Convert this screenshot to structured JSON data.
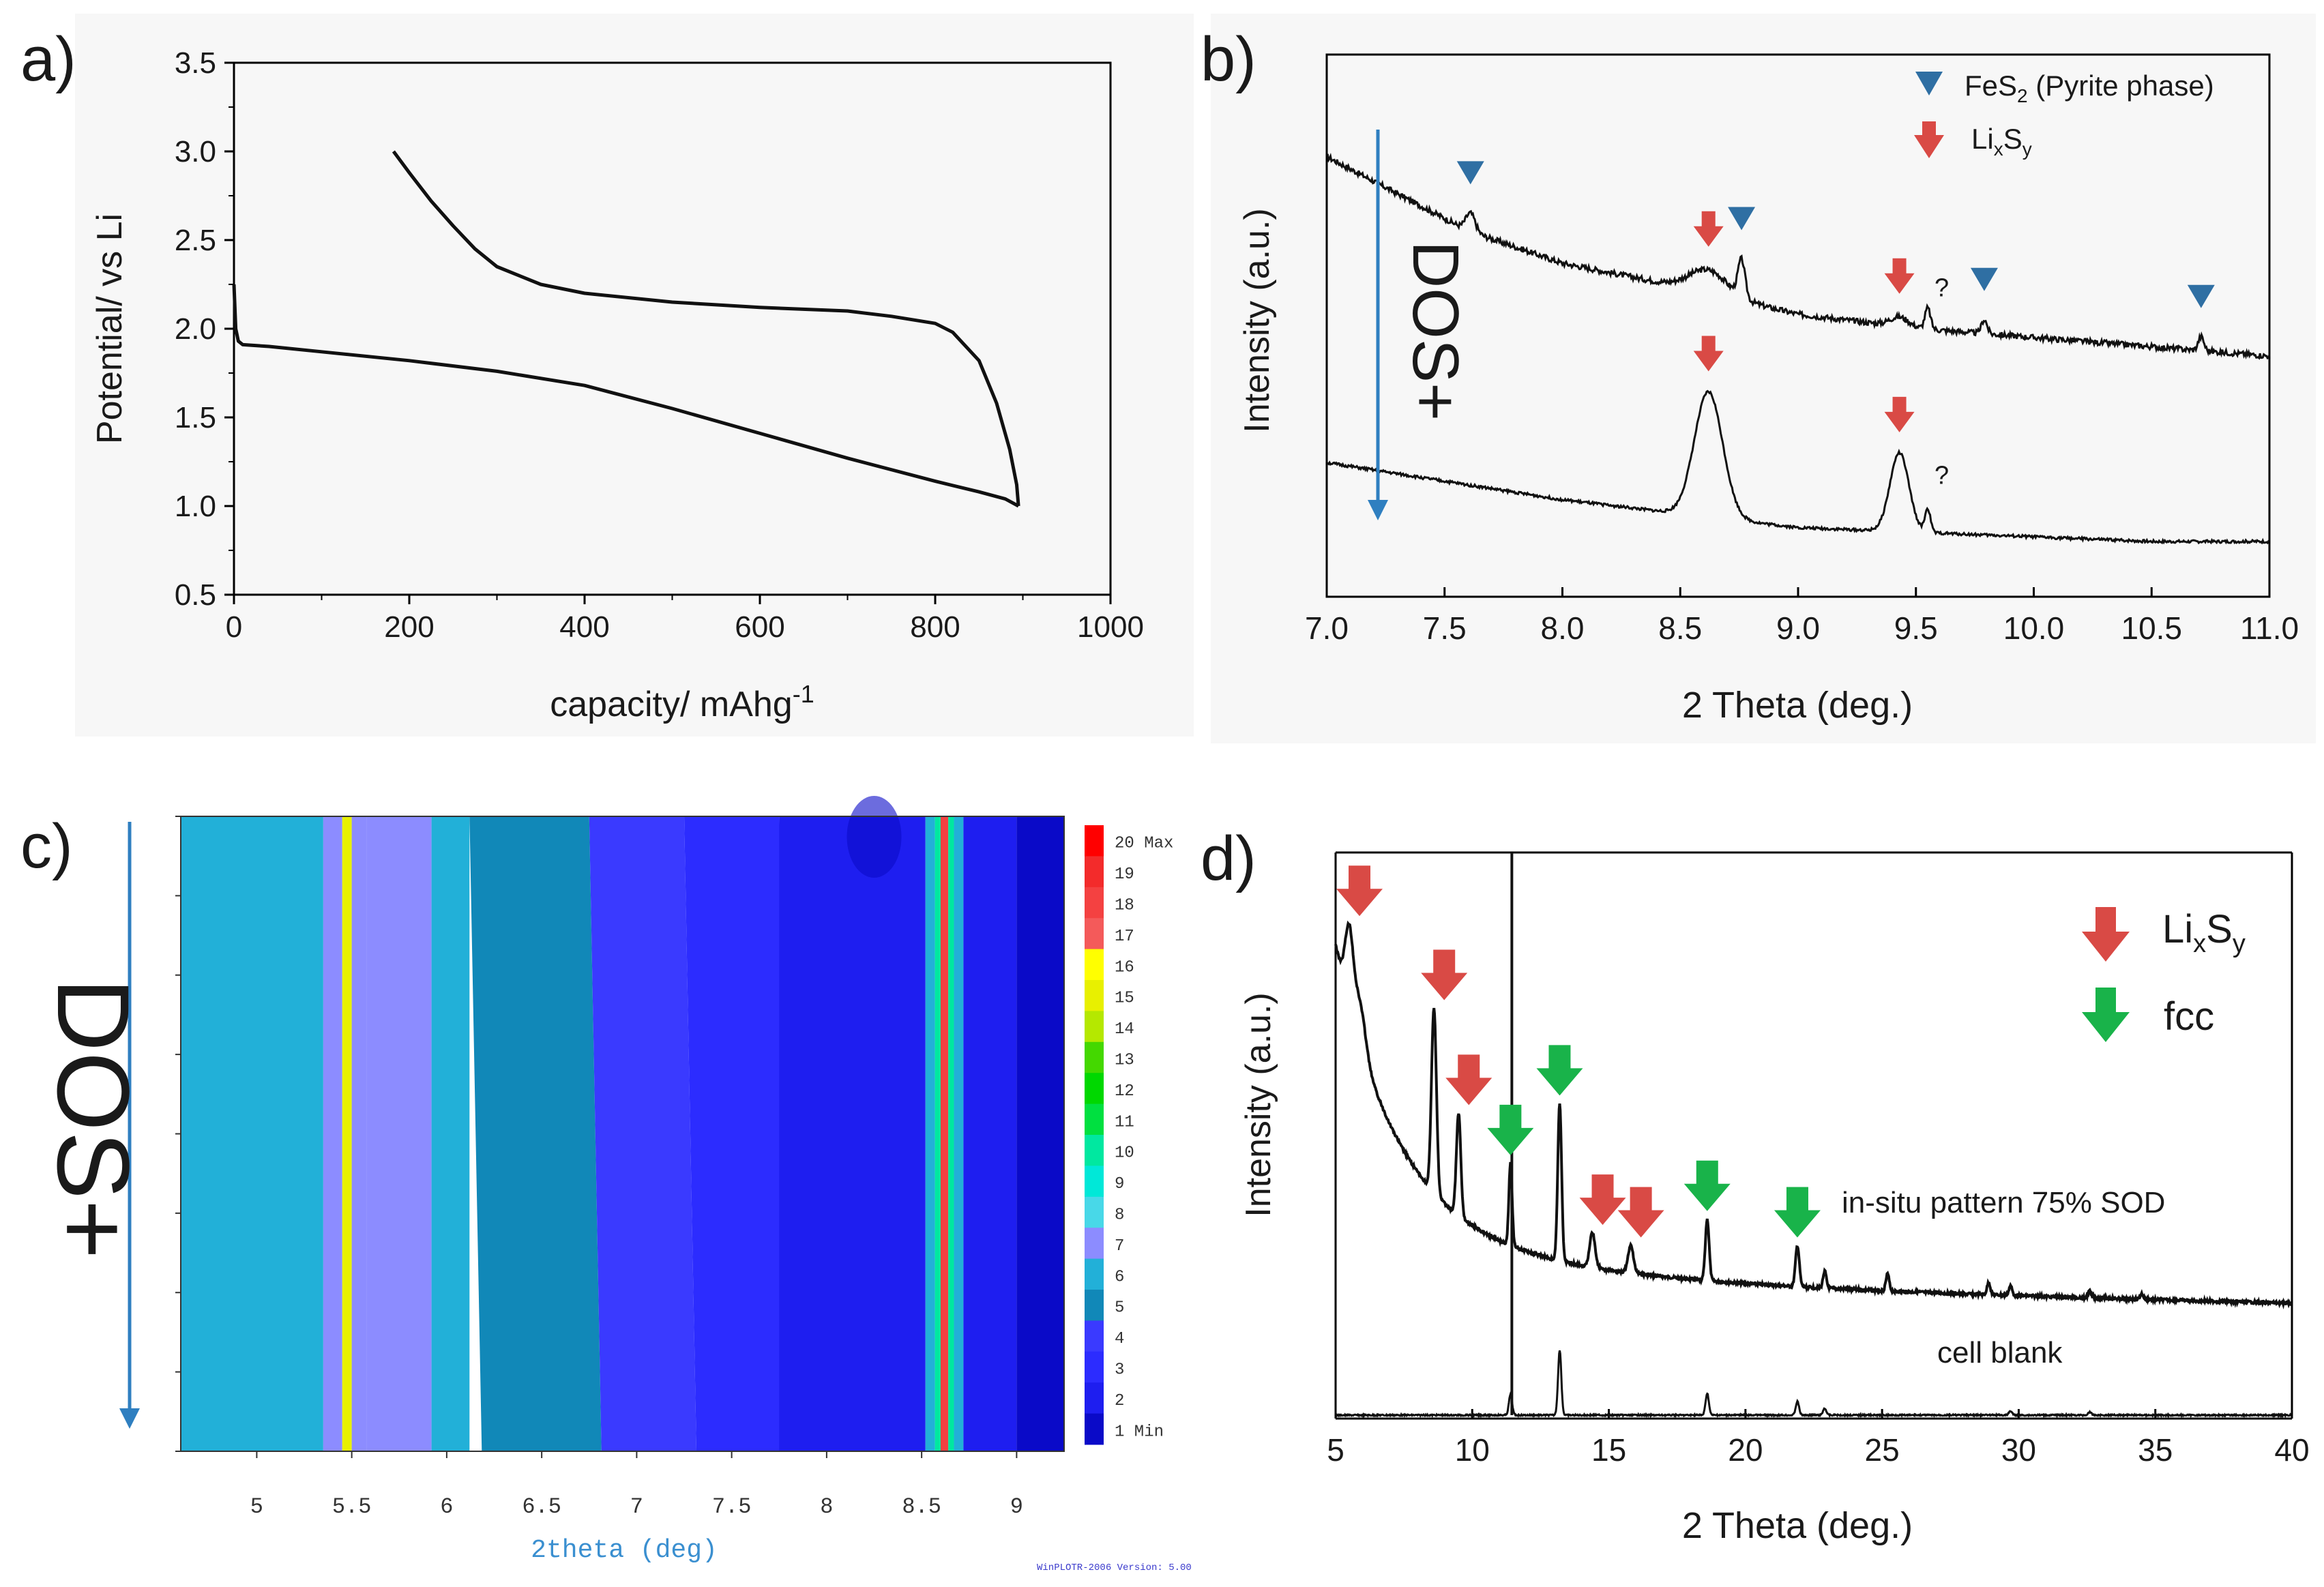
{
  "chart_data": [
    {
      "panel": "a)",
      "type": "line",
      "xlabel": "capacity/ mAhg",
      "xlabel_sup": "-1",
      "ylabel": "Potential/ vs Li",
      "xlim": [
        0,
        1000
      ],
      "ylim": [
        0.5,
        3.5
      ],
      "xticks": [
        0,
        200,
        400,
        600,
        800,
        1000
      ],
      "yticks": [
        0.5,
        1.0,
        1.5,
        2.0,
        2.5,
        3.0,
        3.5
      ],
      "xtick_labels": [
        "0",
        "200",
        "400",
        "600",
        "800",
        "1000"
      ],
      "ytick_labels": [
        "0.5",
        "1.0",
        "1.5",
        "2.0",
        "2.5",
        "3.0",
        "3.5"
      ],
      "series": [
        {
          "x": [
            0,
            2,
            5,
            10,
            40,
            100,
            200,
            300,
            400,
            500,
            600,
            700,
            800,
            850,
            880,
            895
          ],
          "y": [
            2.25,
            2.0,
            1.93,
            1.91,
            1.9,
            1.87,
            1.82,
            1.76,
            1.68,
            1.55,
            1.41,
            1.27,
            1.14,
            1.08,
            1.04,
            1.0
          ]
        },
        {
          "x": [
            895,
            893,
            885,
            870,
            850,
            820,
            800,
            750,
            700,
            600,
            500,
            400,
            350,
            300,
            275,
            250,
            225,
            200,
            182
          ],
          "y": [
            1.0,
            1.12,
            1.32,
            1.58,
            1.82,
            1.98,
            2.03,
            2.07,
            2.1,
            2.12,
            2.15,
            2.2,
            2.25,
            2.35,
            2.45,
            2.58,
            2.72,
            2.88,
            3.0
          ]
        }
      ]
    },
    {
      "panel": "b)",
      "type": "line",
      "xlabel": "2 Theta (deg.)",
      "ylabel": "Intensity (a.u.)",
      "xlim": [
        7.0,
        11.0
      ],
      "xticks": [
        7.0,
        7.5,
        8.0,
        8.5,
        9.0,
        9.5,
        10.0,
        10.5,
        11.0
      ],
      "xtick_labels": [
        "7.0",
        "7.5",
        "8.0",
        "8.5",
        "9.0",
        "9.5",
        "10.0",
        "10.5",
        "11.0"
      ],
      "legend": [
        {
          "marker": "triangle",
          "color": "#2f6fa3",
          "label": "FeS",
          "sub": "2",
          "suffix": " (Pyrite phase)"
        },
        {
          "marker": "arrow",
          "color": "#d94a45",
          "label": "Li",
          "sub": "x",
          "label2": "S",
          "sub2": "y"
        }
      ],
      "arrow_label": "DOS+",
      "question_marks": [
        "?",
        "?"
      ],
      "series": [
        {
          "name_note": "upper",
          "baseline": [
            [
              7.0,
              0.78
            ],
            [
              7.6,
              0.62
            ],
            [
              8.0,
              0.55
            ],
            [
              8.5,
              0.5
            ],
            [
              9.0,
              0.44
            ],
            [
              9.5,
              0.41
            ],
            [
              10.0,
              0.39
            ],
            [
              10.5,
              0.37
            ],
            [
              11.0,
              0.35
            ]
          ],
          "peaks": [
            [
              7.61,
              0.04,
              0.02
            ],
            [
              8.62,
              0.05,
              0.08
            ],
            [
              8.76,
              0.08,
              0.015
            ],
            [
              9.43,
              0.02,
              0.04
            ],
            [
              9.55,
              0.045,
              0.012
            ],
            [
              9.79,
              0.03,
              0.012
            ],
            [
              10.71,
              0.03,
              0.012
            ]
          ]
        },
        {
          "name_note": "lower",
          "baseline": [
            [
              7.0,
              0.12
            ],
            [
              7.5,
              0.08
            ],
            [
              8.0,
              0.04
            ],
            [
              8.5,
              0.01
            ],
            [
              9.0,
              -0.02
            ],
            [
              9.5,
              -0.03
            ],
            [
              10.0,
              -0.04
            ],
            [
              10.5,
              -0.05
            ],
            [
              11.0,
              -0.05
            ]
          ],
          "peaks": [
            [
              8.62,
              0.27,
              0.06
            ],
            [
              9.43,
              0.17,
              0.04
            ],
            [
              9.55,
              0.05,
              0.012
            ]
          ]
        }
      ],
      "markers": {
        "triangles_upper": [
          7.61,
          8.76,
          9.79,
          10.71
        ],
        "arrows_upper": [
          8.62,
          9.43
        ],
        "arrows_lower": [
          8.62,
          9.43
        ]
      }
    },
    {
      "panel": "c)",
      "type": "heatmap",
      "xlabel": "2theta (deg)",
      "xlim": [
        4.6,
        9.25
      ],
      "xticks": [
        5,
        5.5,
        6,
        6.5,
        7,
        7.5,
        8,
        8.5,
        9
      ],
      "xtick_labels": [
        "5",
        "5.5",
        "6",
        "6.5",
        "7",
        "7.5",
        "8",
        "8.5",
        "9"
      ],
      "arrow_label": "DOS+",
      "colorbar": {
        "labels": [
          "20 Max",
          "19",
          "18",
          "17",
          "16",
          "15",
          "14",
          "13",
          "12",
          "11",
          "10",
          "9",
          "8",
          "7",
          "6",
          "5",
          "4",
          "3",
          "2",
          "1 Min"
        ],
        "colors": [
          "#ff0000",
          "#f32b2b",
          "#f44141",
          "#f45a5a",
          "#ffff00",
          "#e8f000",
          "#b5e800",
          "#44d800",
          "#00d800",
          "#00e040",
          "#00e8a0",
          "#00e8d8",
          "#48d8e8",
          "#8c8cff",
          "#22b0d8",
          "#1188b8",
          "#3a3aff",
          "#2c2cff",
          "#1e1ef0",
          "#0a0ac8"
        ]
      },
      "bands": [
        {
          "x0": 4.6,
          "x1": 5.35,
          "level": 6
        },
        {
          "x0": 5.35,
          "x1": 5.45,
          "level": 7
        },
        {
          "x0": 5.45,
          "x1": 5.5,
          "level": 15
        },
        {
          "x0": 5.5,
          "x1": 5.58,
          "level": 7
        },
        {
          "x0": 5.58,
          "x1": 5.92,
          "level": 7
        },
        {
          "x0": 5.92,
          "x1": 6.12,
          "level": 6
        },
        {
          "x0": 6.12,
          "x1": 6.75,
          "level": 5
        },
        {
          "x0": 6.75,
          "x1": 7.25,
          "level": 4
        },
        {
          "x0": 7.25,
          "x1": 7.75,
          "level": 3
        },
        {
          "x0": 7.75,
          "x1": 8.52,
          "level": 2
        },
        {
          "x0": 8.52,
          "x1": 8.57,
          "level": 6
        },
        {
          "x0": 8.57,
          "x1": 8.6,
          "level": 10
        },
        {
          "x0": 8.6,
          "x1": 8.64,
          "level": 18
        },
        {
          "x0": 8.64,
          "x1": 8.67,
          "level": 10
        },
        {
          "x0": 8.67,
          "x1": 8.72,
          "level": 6
        },
        {
          "x0": 8.72,
          "x1": 9.0,
          "level": 2
        },
        {
          "x0": 9.0,
          "x1": 9.25,
          "level": 1
        }
      ],
      "footer": "WinPLOTR-2006 Version: 5.00"
    },
    {
      "panel": "d)",
      "type": "line",
      "xlabel": "2 Theta (deg.)",
      "ylabel": "Intensity (a.u.)",
      "xlim": [
        5,
        40
      ],
      "xticks": [
        5,
        10,
        15,
        20,
        25,
        30,
        35,
        40
      ],
      "xtick_labels": [
        "5",
        "10",
        "15",
        "20",
        "25",
        "30",
        "35",
        "40"
      ],
      "legend": [
        {
          "marker": "arrow",
          "color": "#d94a45",
          "label": "Li",
          "sub": "x",
          "label2": "S",
          "sub2": "y"
        },
        {
          "marker": "arrow",
          "color": "#19b34a",
          "label": "fcc"
        }
      ],
      "annotations": [
        "in-situ pattern 75% SOD",
        "cell blank"
      ],
      "red_arrows": [
        5.5,
        8.6,
        9.5,
        14.4,
        15.8
      ],
      "green_arrows": [
        11.4,
        13.2,
        18.6,
        21.9
      ]
    }
  ]
}
